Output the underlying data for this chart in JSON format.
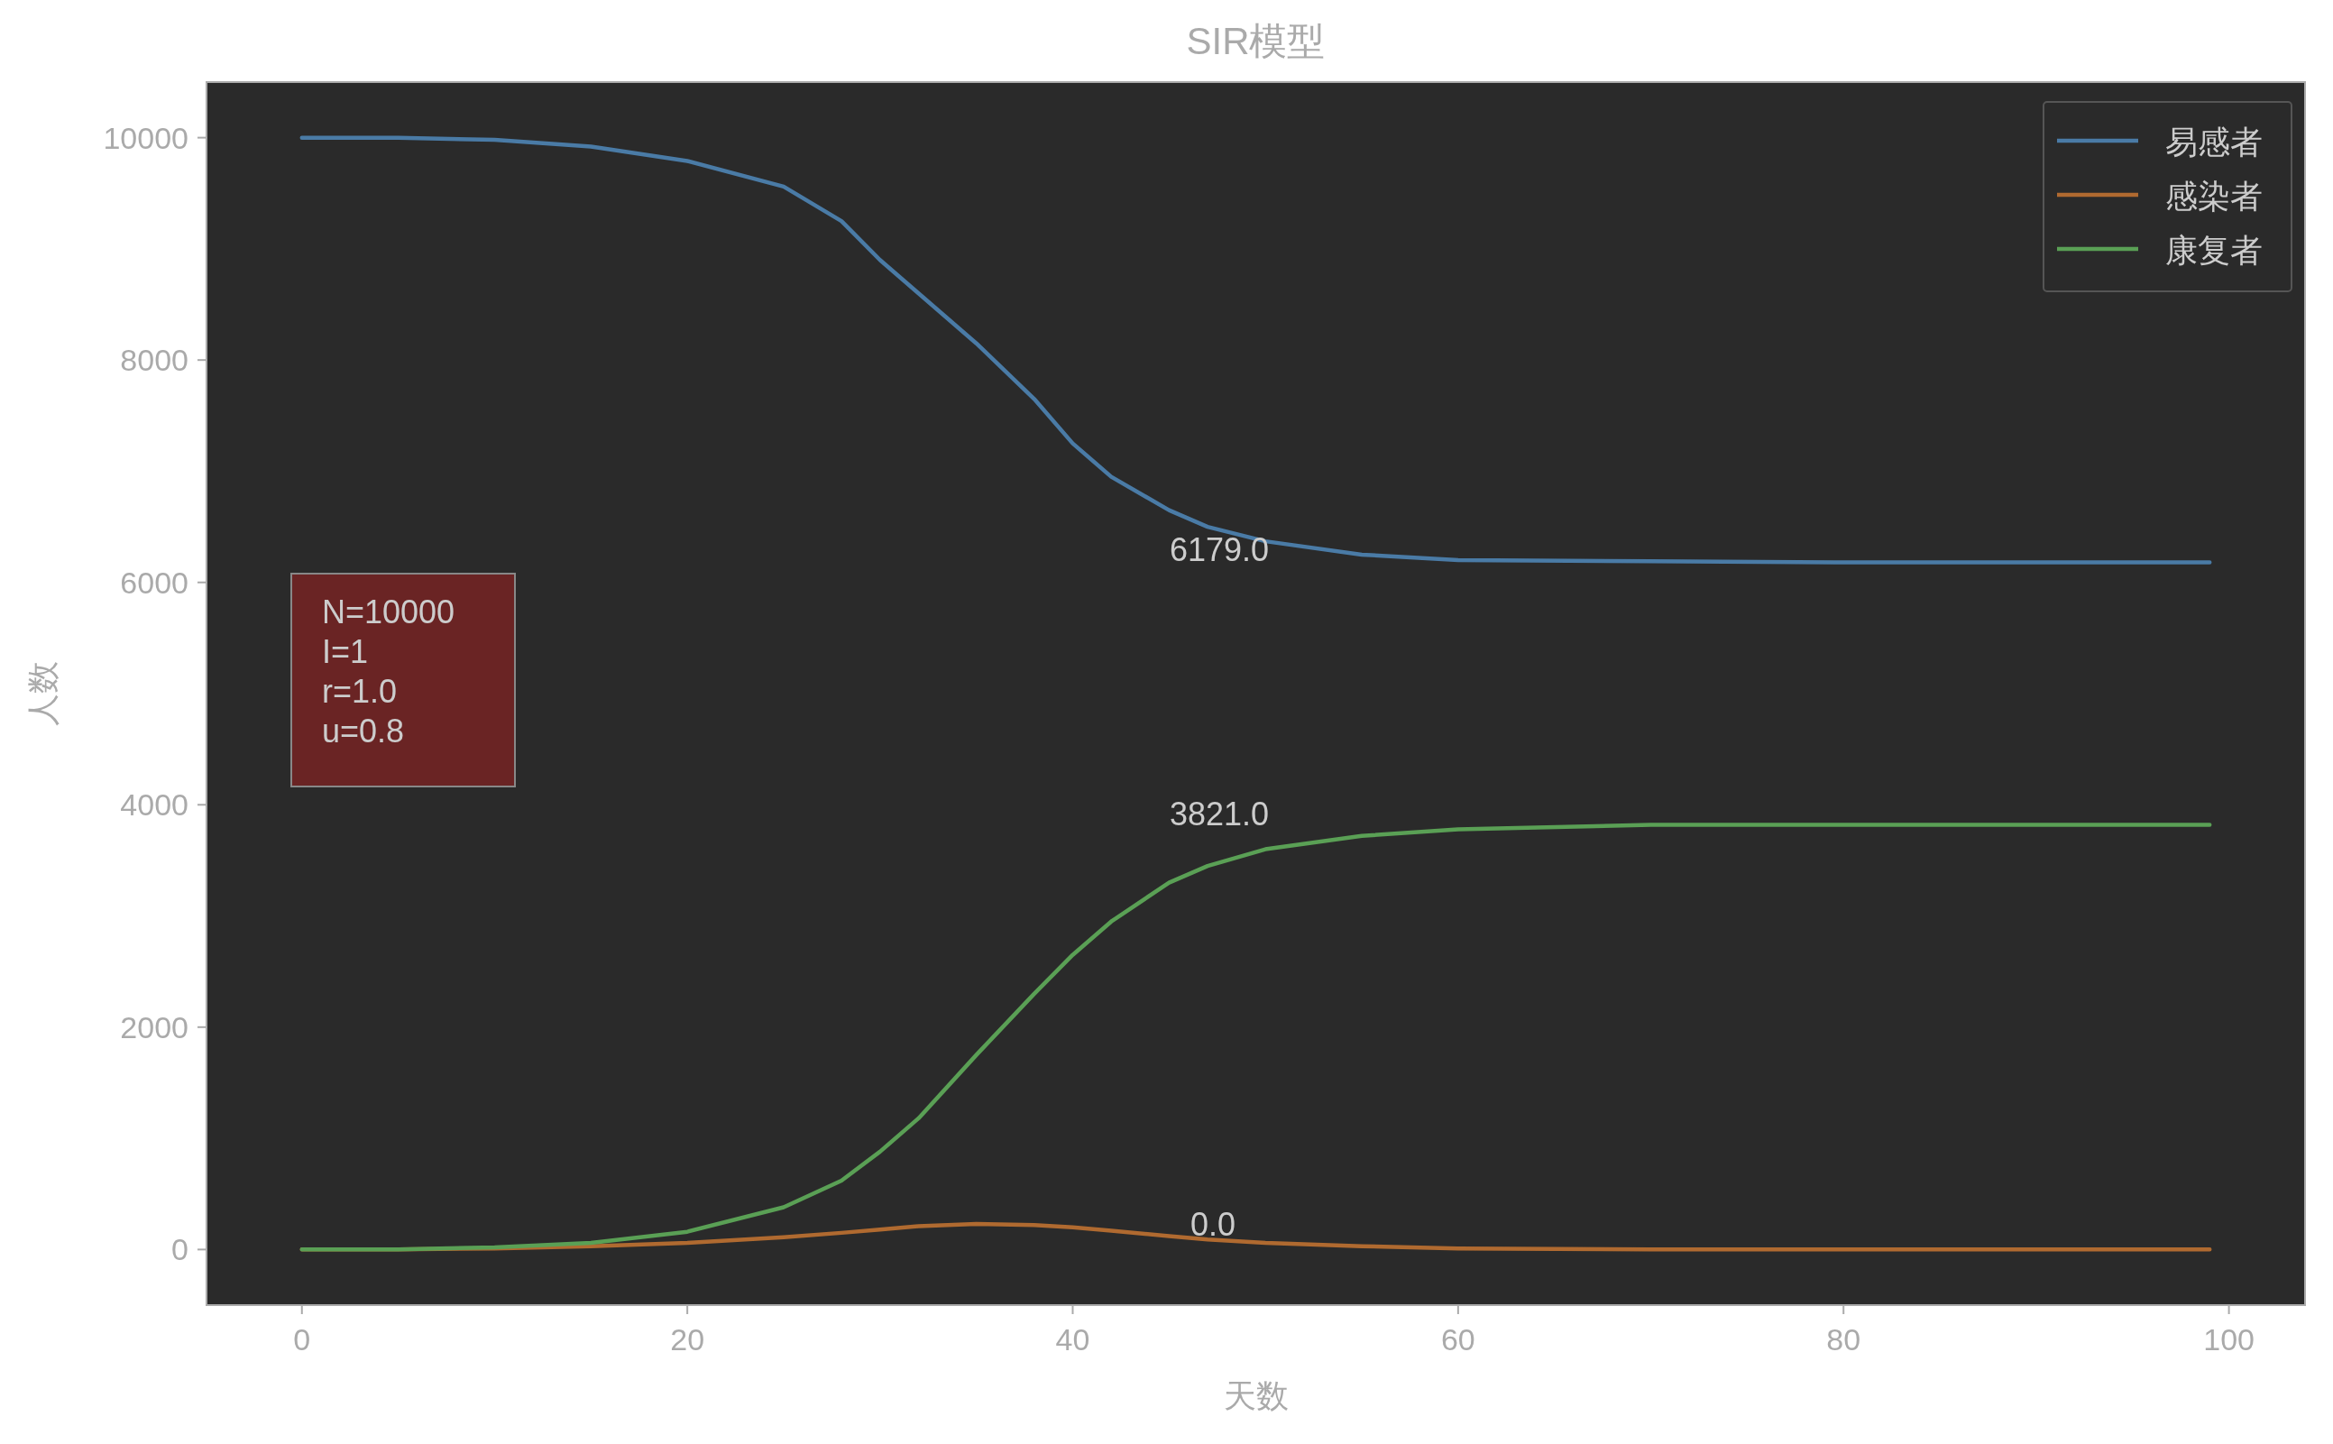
{
  "chart_data": {
    "type": "line",
    "title": "SIR模型",
    "xlabel": "天数",
    "ylabel": "人数",
    "x": [
      0,
      5,
      10,
      15,
      20,
      25,
      28,
      30,
      32,
      35,
      38,
      40,
      42,
      45,
      47,
      50,
      55,
      60,
      70,
      80,
      90,
      99
    ],
    "series": [
      {
        "name": "易感者",
        "color": "#4a7ba6",
        "values": [
          10000,
          10000,
          9980,
          9920,
          9790,
          9560,
          9250,
          8900,
          8600,
          8150,
          7650,
          7250,
          6950,
          6650,
          6500,
          6370,
          6250,
          6200,
          6190,
          6180,
          6180,
          6180
        ]
      },
      {
        "name": "感染者",
        "color": "#b06a30",
        "values": [
          0,
          0,
          10,
          30,
          60,
          110,
          150,
          180,
          210,
          230,
          220,
          200,
          170,
          120,
          90,
          60,
          30,
          10,
          0,
          0,
          0,
          0
        ]
      },
      {
        "name": "康复者",
        "color": "#5aa055",
        "values": [
          0,
          0,
          20,
          60,
          160,
          380,
          620,
          880,
          1180,
          1750,
          2300,
          2650,
          2950,
          3300,
          3450,
          3600,
          3720,
          3780,
          3820,
          3820,
          3820,
          3820
        ]
      }
    ],
    "xlim": [
      -4.95,
      103.95
    ],
    "ylim": [
      -500,
      10500
    ],
    "xticks": [
      0,
      20,
      40,
      60,
      80,
      100
    ],
    "yticks": [
      0,
      2000,
      4000,
      6000,
      8000,
      10000
    ],
    "grid": false,
    "legend": "top right",
    "annotations": [
      "6179.0",
      "3821.0",
      "0.0",
      "N=10000\nI=1\nr=1.0\nu=0.8"
    ]
  }
}
